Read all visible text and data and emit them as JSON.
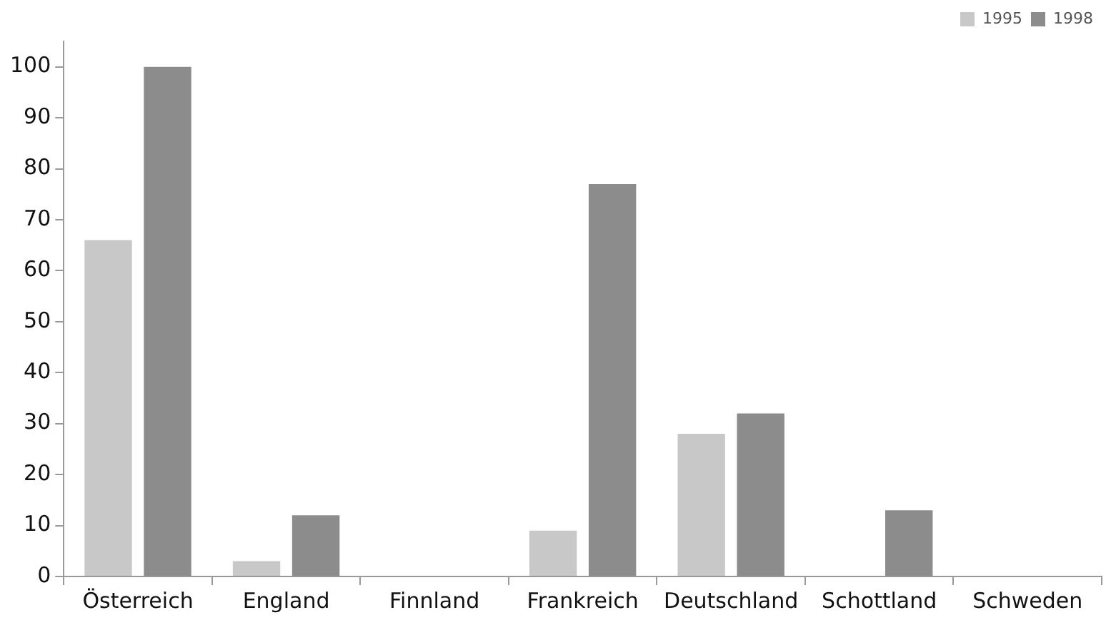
{
  "chart_data": {
    "type": "bar",
    "categories": [
      "Österreich",
      "England",
      "Finnland",
      "Frankreich",
      "Deutschland",
      "Schottland",
      "Schweden"
    ],
    "series": [
      {
        "name": "1995",
        "color": "#c8c8c8",
        "values": [
          66,
          3,
          0,
          9,
          28,
          0,
          0
        ]
      },
      {
        "name": "1998",
        "color": "#8c8c8c",
        "values": [
          100,
          12,
          0,
          77,
          32,
          13,
          0
        ]
      }
    ],
    "ylim": [
      0,
      105
    ],
    "yticks": [
      0,
      10,
      20,
      30,
      40,
      50,
      60,
      70,
      80,
      90,
      100
    ],
    "grid": false,
    "legend": "top right"
  }
}
